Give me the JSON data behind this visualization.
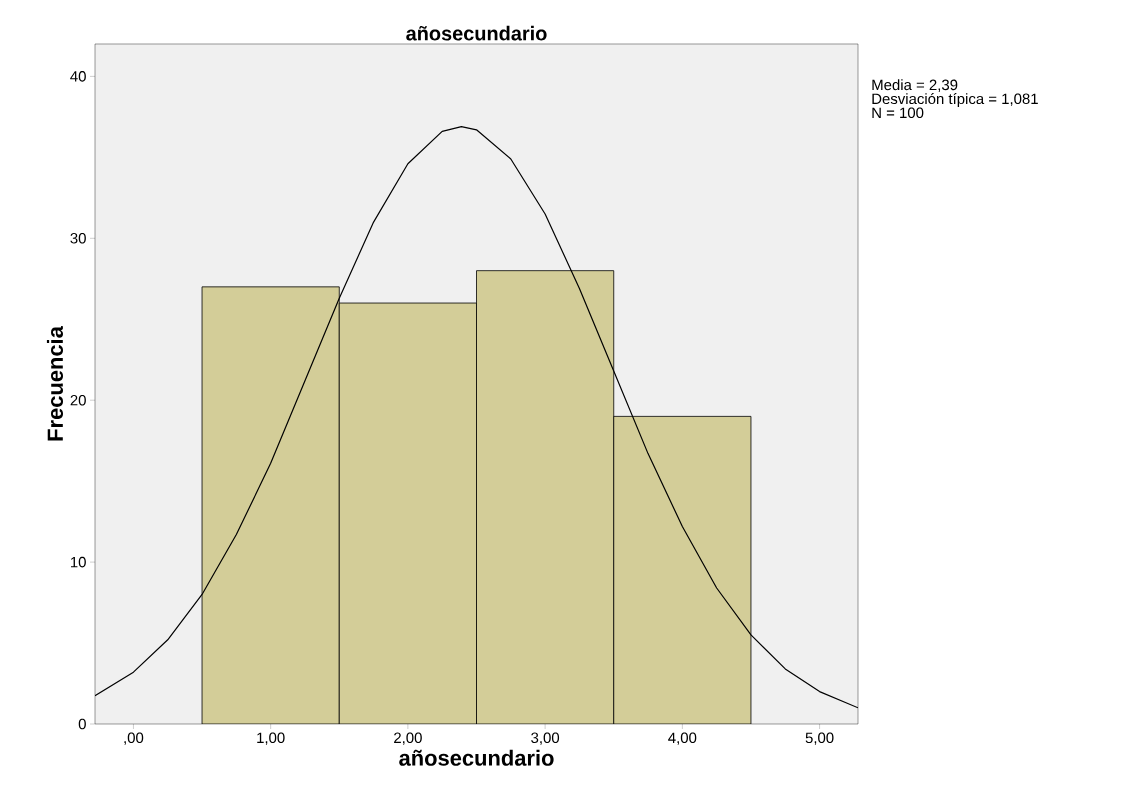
{
  "chart_data": {
    "type": "histogram",
    "title": "añosecundario",
    "xlabel": "añosecundario",
    "ylabel": "Frecuencia",
    "bins": [
      0.5,
      1.5,
      2.5,
      3.5,
      4.5
    ],
    "values": [
      27,
      26,
      28,
      19
    ],
    "color": "#d3cd98",
    "series": [
      {
        "type": "line",
        "color": "#000000",
        "x": [
          -0.28,
          0,
          0.25,
          0.5,
          0.75,
          1,
          1.25,
          1.5,
          1.75,
          2,
          2.25,
          2.39,
          2.5,
          2.75,
          3,
          3.25,
          3.5,
          3.75,
          4,
          4.25,
          4.5,
          4.75,
          5,
          5.28
        ],
        "values": [
          1.75,
          3.2,
          5.2,
          8.0,
          11.7,
          16.1,
          21.2,
          26.3,
          31.0,
          34.6,
          36.6,
          36.9,
          36.7,
          34.9,
          31.5,
          26.9,
          21.8,
          16.7,
          12.2,
          8.4,
          5.5,
          3.4,
          2.0,
          1.0
        ]
      }
    ],
    "xlim": [
      -0.28,
      5.28
    ],
    "ylim": [
      0,
      42
    ],
    "xticks": [
      {
        "value": 0,
        "label": ",00"
      },
      {
        "value": 1,
        "label": "1,00"
      },
      {
        "value": 2,
        "label": "2,00"
      },
      {
        "value": 3,
        "label": "3,00"
      },
      {
        "value": 4,
        "label": "4,00"
      },
      {
        "value": 5,
        "label": "5,00"
      }
    ],
    "yticks": [
      0,
      10,
      20,
      30,
      40
    ],
    "grid": false,
    "marker": "none",
    "line_style": "solid",
    "annotations": [
      "Media = 2,39",
      "Desviación típica = 1,081",
      "N = 100"
    ]
  }
}
